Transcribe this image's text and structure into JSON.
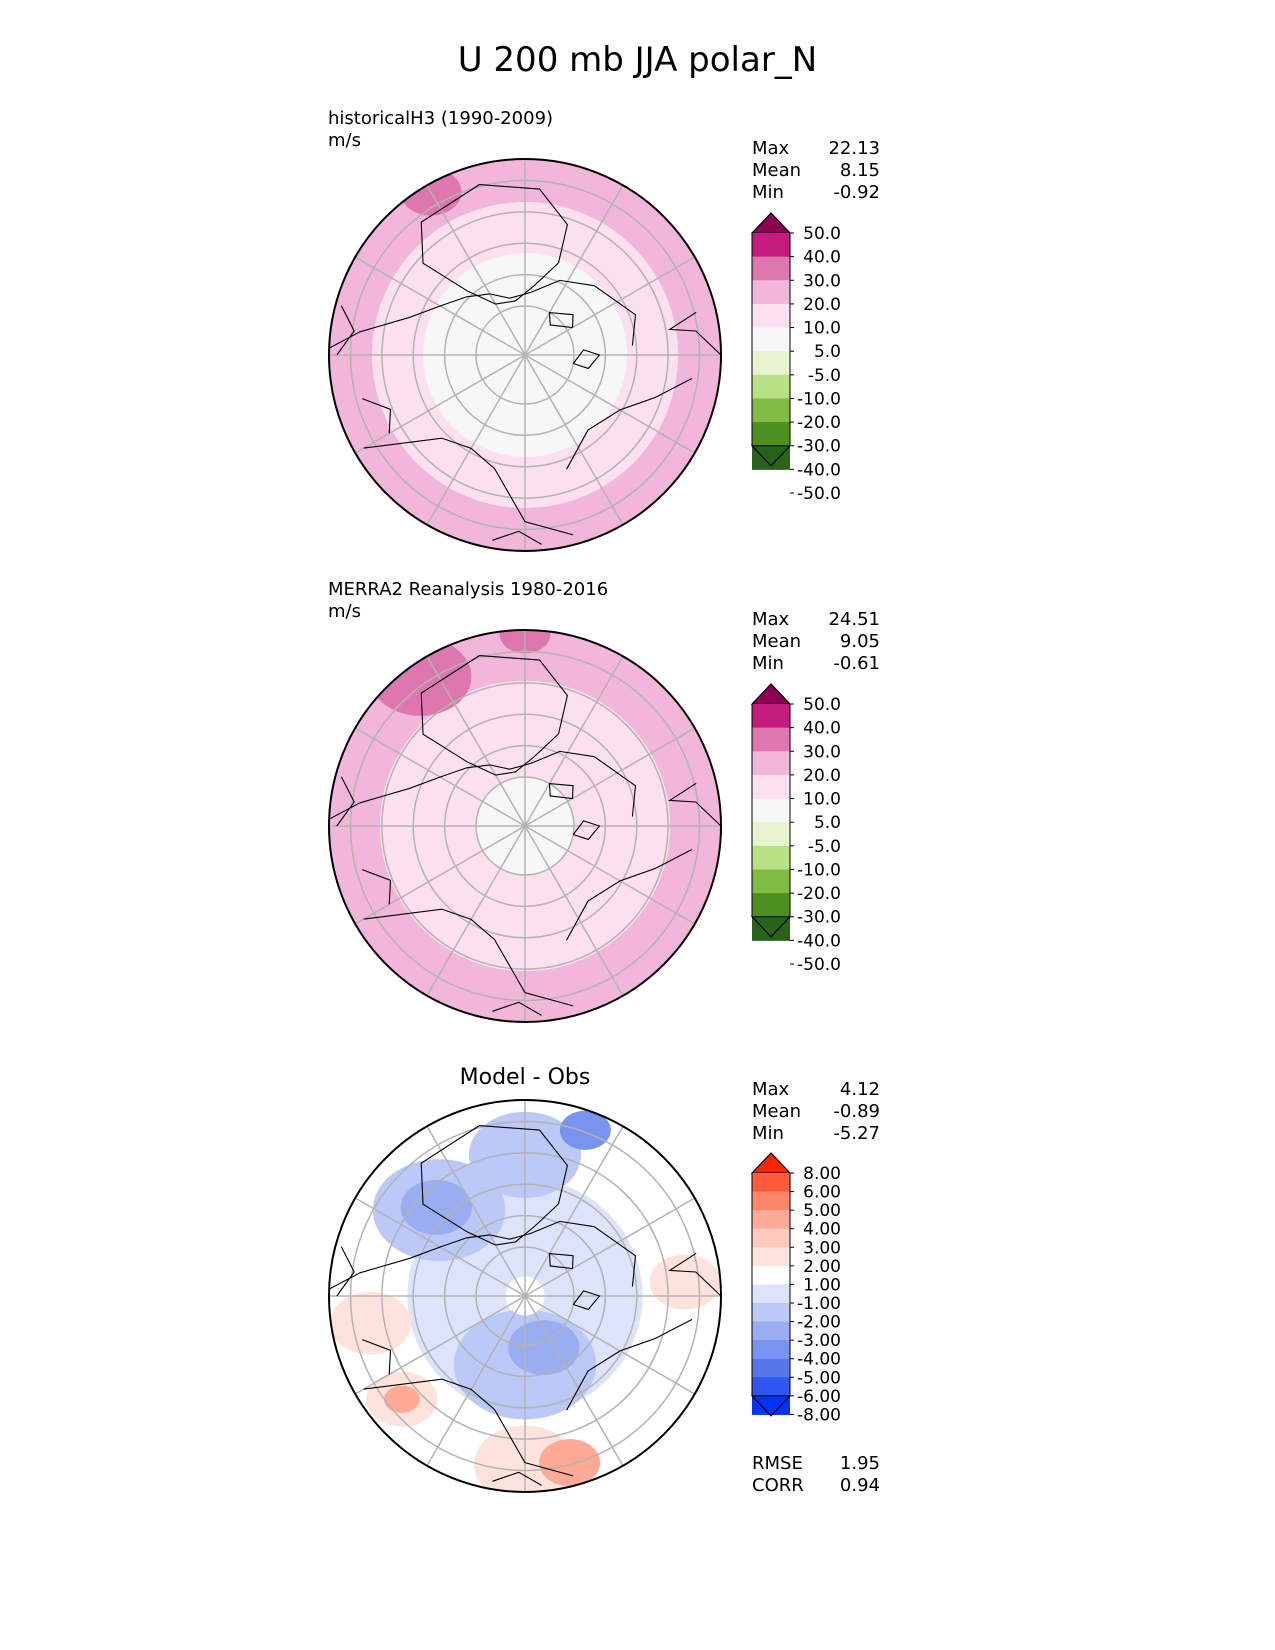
{
  "title": "U 200 mb JJA polar_N",
  "colors": {
    "test_ref_levels": [
      "#8e0152",
      "#c51b7d",
      "#de77ae",
      "#f1b6da",
      "#fde0ef",
      "#f7f7f7",
      "#e6f5d0",
      "#b8e186",
      "#7fbc41",
      "#4d9221",
      "#276419"
    ],
    "diff_levels": [
      "#ff2200",
      "#ff5a3a",
      "#ff866b",
      "#ffa997",
      "#ffcabe",
      "#fde3dc",
      "#ffffff",
      "#dde3fb",
      "#bcc8f7",
      "#9aadf3",
      "#7993f0",
      "#5876ec",
      "#2f55f2",
      "#0033ff"
    ]
  },
  "chart_data": [
    {
      "type": "heatmap",
      "projection": "north-polar-stereographic",
      "title": "historicalH3 (1990-2009)",
      "units": "m/s",
      "stats": [
        {
          "label": "Max",
          "value": "22.13"
        },
        {
          "label": "Mean",
          "value": "8.15"
        },
        {
          "label": "Min",
          "value": "-0.92"
        }
      ],
      "colorbar_ticks": [
        "50.0",
        "40.0",
        "30.0",
        "20.0",
        "10.0",
        "5.0",
        "-5.0",
        "-10.0",
        "-20.0",
        "-30.0",
        "-40.0",
        "-50.0"
      ],
      "field": [
        {
          "level": 3,
          "shape": "annulus",
          "r_inner": 0.78,
          "r_outer": 1.0
        },
        {
          "level": 4,
          "shape": "disk",
          "r": 0.78
        },
        {
          "level": 5,
          "shape": "disk",
          "r": 0.52
        },
        {
          "level": 2,
          "shape": "patch",
          "lon": 210,
          "r": 0.96,
          "size": 0.12
        }
      ]
    },
    {
      "type": "heatmap",
      "projection": "north-polar-stereographic",
      "title": "MERRA2 Reanalysis 1980-2016",
      "units": "m/s",
      "stats": [
        {
          "label": "Max",
          "value": "24.51"
        },
        {
          "label": "Mean",
          "value": "9.05"
        },
        {
          "label": "Min",
          "value": "-0.61"
        }
      ],
      "colorbar_ticks": [
        "50.0",
        "40.0",
        "30.0",
        "20.0",
        "10.0",
        "5.0",
        "-5.0",
        "-10.0",
        "-20.0",
        "-30.0",
        "-40.0",
        "-50.0"
      ],
      "field": [
        {
          "level": 3,
          "shape": "annulus",
          "r_inner": 0.74,
          "r_outer": 1.0
        },
        {
          "level": 4,
          "shape": "disk",
          "r": 0.74
        },
        {
          "level": 5,
          "shape": "disk",
          "r": 0.25
        },
        {
          "level": 2,
          "shape": "patch",
          "lon": 215,
          "r": 0.93,
          "size": 0.2
        },
        {
          "level": 2,
          "shape": "patch",
          "lon": 180,
          "r": 0.98,
          "size": 0.1
        }
      ]
    },
    {
      "type": "heatmap",
      "projection": "north-polar-stereographic",
      "title": "Model - Obs",
      "units": "",
      "stats": [
        {
          "label": "Max",
          "value": "4.12"
        },
        {
          "label": "Mean",
          "value": "-0.89"
        },
        {
          "label": "Min",
          "value": "-5.27"
        }
      ],
      "extra_stats": [
        {
          "label": "RMSE",
          "value": "1.95"
        },
        {
          "label": "CORR",
          "value": "0.94"
        }
      ],
      "colorbar_ticks": [
        "8.00",
        "6.00",
        "5.00",
        "4.00",
        "3.00",
        "2.00",
        "1.00",
        "-1.00",
        "-2.00",
        "-3.00",
        "-4.00",
        "-5.00",
        "-6.00",
        "-8.00"
      ],
      "field": [
        {
          "level": 6,
          "shape": "disk",
          "r": 1.0
        },
        {
          "level": 7,
          "shape": "disk",
          "r": 0.6
        },
        {
          "level": 8,
          "shape": "patch",
          "lon": 0,
          "r": 0.35,
          "size": 0.28
        },
        {
          "level": 9,
          "shape": "patch",
          "lon": 20,
          "r": 0.28,
          "size": 0.14
        },
        {
          "level": 8,
          "shape": "patch",
          "lon": 225,
          "r": 0.62,
          "size": 0.26
        },
        {
          "level": 9,
          "shape": "patch",
          "lon": 225,
          "r": 0.64,
          "size": 0.14
        },
        {
          "level": 8,
          "shape": "patch",
          "lon": 180,
          "r": 0.72,
          "size": 0.22
        },
        {
          "level": 10,
          "shape": "patch",
          "lon": 160,
          "r": 0.9,
          "size": 0.1
        },
        {
          "level": 5,
          "shape": "patch",
          "lon": 0,
          "r": 0.86,
          "size": 0.2
        },
        {
          "level": 3,
          "shape": "patch",
          "lon": 15,
          "r": 0.88,
          "size": 0.12
        },
        {
          "level": 5,
          "shape": "patch",
          "lon": 280,
          "r": 0.8,
          "size": 0.16
        },
        {
          "level": 5,
          "shape": "patch",
          "lon": 310,
          "r": 0.82,
          "size": 0.14
        },
        {
          "level": 3,
          "shape": "patch",
          "lon": 310,
          "r": 0.82,
          "size": 0.07
        },
        {
          "level": 5,
          "shape": "patch",
          "lon": 95,
          "r": 0.82,
          "size": 0.14
        },
        {
          "level": 6,
          "shape": "disk",
          "r": 0.1
        }
      ]
    }
  ]
}
